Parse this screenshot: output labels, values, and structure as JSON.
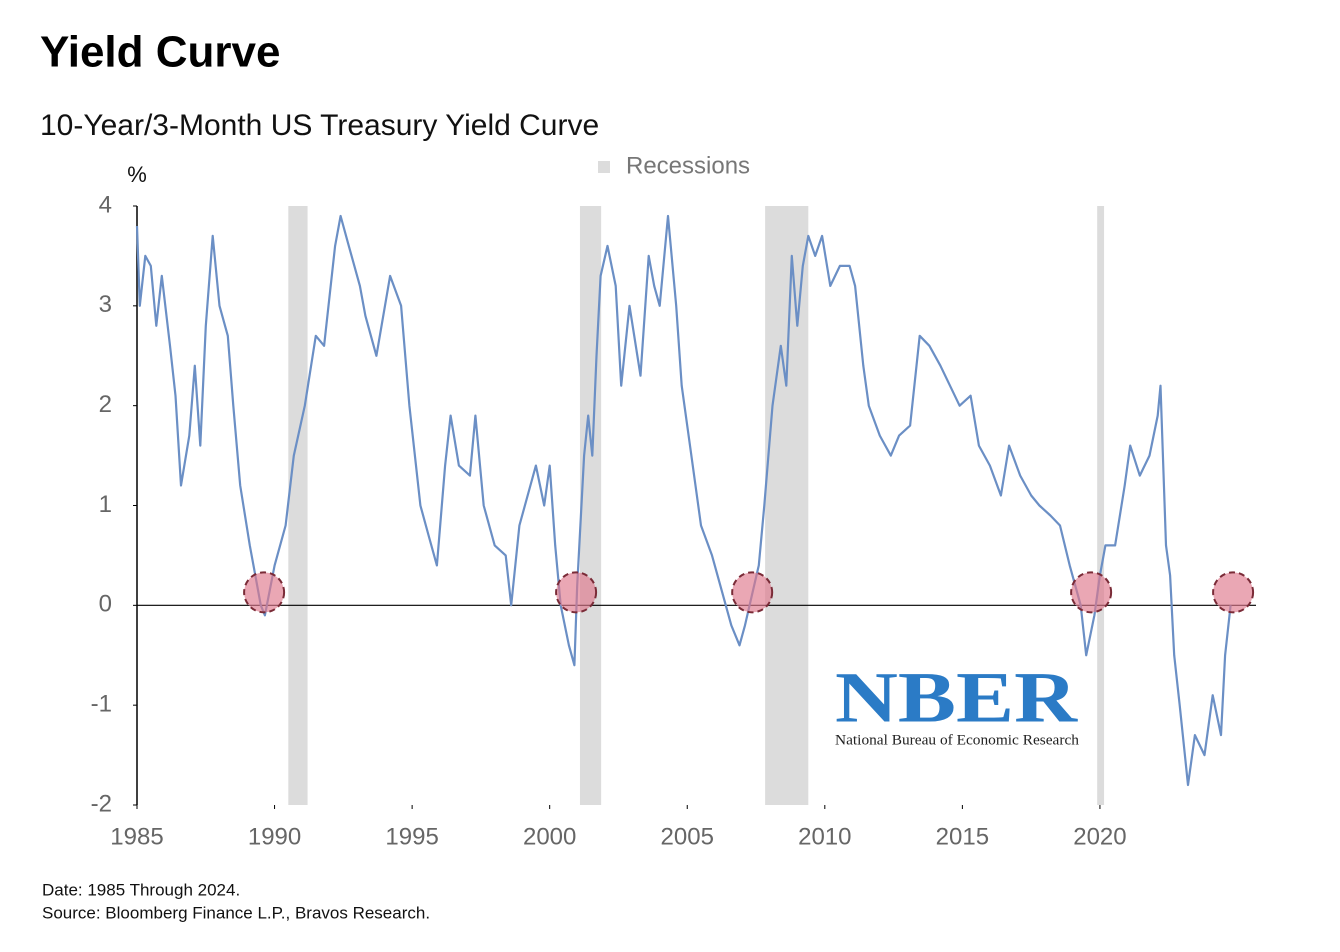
{
  "chart_data": {
    "type": "line",
    "title": "Yield Curve",
    "subtitle": "10-Year/3-Month US Treasury Yield Curve",
    "y_label": "%",
    "x": [
      1985.0,
      1985.1,
      1985.3,
      1985.5,
      1985.7,
      1985.9,
      1986.2,
      1986.4,
      1986.6,
      1986.9,
      1987.1,
      1987.3,
      1987.5,
      1987.75,
      1988.0,
      1988.3,
      1988.5,
      1988.75,
      1989.1,
      1989.5,
      1989.65,
      1990.0,
      1990.4,
      1990.7,
      1991.1,
      1991.5,
      1991.8,
      1992.2,
      1992.4,
      1992.7,
      1993.1,
      1993.3,
      1993.7,
      1994.2,
      1994.6,
      1994.9,
      1995.3,
      1995.6,
      1995.9,
      1996.2,
      1996.4,
      1996.7,
      1997.1,
      1997.3,
      1997.6,
      1998.0,
      1998.4,
      1998.6,
      1998.9,
      1999.3,
      1999.5,
      1999.8,
      2000.0,
      2000.2,
      2000.4,
      2000.7,
      2000.9,
      2001.0,
      2001.25,
      2001.4,
      2001.55,
      2001.7,
      2001.85,
      2002.1,
      2002.4,
      2002.6,
      2002.9,
      2003.3,
      2003.6,
      2003.8,
      2004.0,
      2004.3,
      2004.6,
      2004.8,
      2005.1,
      2005.5,
      2005.9,
      2006.2,
      2006.6,
      2006.9,
      2007.1,
      2007.35,
      2007.6,
      2007.8,
      2008.1,
      2008.4,
      2008.6,
      2008.8,
      2009.0,
      2009.2,
      2009.4,
      2009.65,
      2009.9,
      2010.2,
      2010.55,
      2010.9,
      2011.1,
      2011.4,
      2011.6,
      2012.0,
      2012.4,
      2012.7,
      2013.1,
      2013.45,
      2013.8,
      2014.2,
      2014.55,
      2014.9,
      2015.3,
      2015.6,
      2016.0,
      2016.4,
      2016.7,
      2017.1,
      2017.5,
      2017.8,
      2018.2,
      2018.55,
      2018.9,
      2019.3,
      2019.5,
      2019.8,
      2020.0,
      2020.2,
      2020.55,
      2020.9,
      2021.1,
      2021.45,
      2021.8,
      2022.1,
      2022.2,
      2022.4,
      2022.55,
      2022.7,
      2022.9,
      2023.2,
      2023.45,
      2023.8,
      2024.1,
      2024.4,
      2024.55,
      2024.75
    ],
    "series": [
      {
        "color": "#6b8fc5",
        "values": [
          3.8,
          3.0,
          3.5,
          3.4,
          2.8,
          3.3,
          2.6,
          2.1,
          1.2,
          1.7,
          2.4,
          1.6,
          2.8,
          3.7,
          3.0,
          2.7,
          2.0,
          1.2,
          0.6,
          0.0,
          -0.1,
          0.4,
          0.8,
          1.5,
          2.0,
          2.7,
          2.6,
          3.6,
          3.9,
          3.6,
          3.2,
          2.9,
          2.5,
          3.3,
          3.0,
          2.0,
          1.0,
          0.7,
          0.4,
          1.4,
          1.9,
          1.4,
          1.3,
          1.9,
          1.0,
          0.6,
          0.5,
          0.0,
          0.8,
          1.2,
          1.4,
          1.0,
          1.4,
          0.6,
          0.0,
          -0.4,
          -0.6,
          0.2,
          1.5,
          1.9,
          1.5,
          2.5,
          3.3,
          3.6,
          3.2,
          2.2,
          3.0,
          2.3,
          3.5,
          3.2,
          3.0,
          3.9,
          3.0,
          2.2,
          1.6,
          0.8,
          0.5,
          0.2,
          -0.2,
          -0.4,
          -0.2,
          0.1,
          0.4,
          1.0,
          2.0,
          2.6,
          2.2,
          3.5,
          2.8,
          3.4,
          3.7,
          3.5,
          3.7,
          3.2,
          3.4,
          3.4,
          3.2,
          2.4,
          2.0,
          1.7,
          1.5,
          1.7,
          1.8,
          2.7,
          2.6,
          2.4,
          2.2,
          2.0,
          2.1,
          1.6,
          1.4,
          1.1,
          1.6,
          1.3,
          1.1,
          1.0,
          0.9,
          0.8,
          0.4,
          0.0,
          -0.5,
          -0.1,
          0.3,
          0.6,
          0.6,
          1.2,
          1.6,
          1.3,
          1.5,
          1.9,
          2.2,
          0.6,
          0.3,
          -0.5,
          -1.0,
          -1.8,
          -1.3,
          -1.5,
          -0.9,
          -1.3,
          -0.5,
          0.0
        ]
      }
    ],
    "recessions": {
      "name": "Recessions",
      "color": "#dcdcdc",
      "spans": [
        [
          1990.5,
          1991.2
        ],
        [
          2001.1,
          2001.87
        ],
        [
          2007.83,
          2009.4
        ],
        [
          2019.9,
          2020.15
        ]
      ]
    },
    "highlights": {
      "x": [
        1989.62,
        2000.96,
        2007.36,
        2019.68,
        2024.84
      ],
      "y": [
        0.13,
        0.13,
        0.13,
        0.13,
        0.13
      ]
    },
    "xlim": [
      1985,
      2025
    ],
    "ylim": [
      -2,
      4
    ],
    "xticks": [
      1985,
      1990,
      1995,
      2000,
      2005,
      2010,
      2015,
      2020
    ],
    "yticks": [
      -2,
      -1,
      0,
      1,
      2,
      3,
      4
    ],
    "logo": {
      "text": "NBER",
      "caption": "National Bureau of Economic Research"
    },
    "notes": [
      "Date: 1985 Through 2024.",
      "Source: Bloomberg Finance L.P., Bravos Research."
    ]
  }
}
